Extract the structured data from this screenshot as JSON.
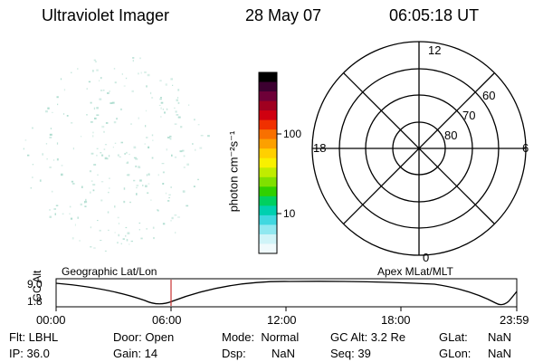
{
  "header": {
    "instrument": "Ultraviolet Imager",
    "date": "28 May 07",
    "time": "06:05:18 UT"
  },
  "colorbar": {
    "unit_label": "photon cm⁻²s⁻¹",
    "tick_100": "100",
    "tick_10": "10"
  },
  "polar_plot": {
    "mlt_top": "12",
    "mlt_left": "18",
    "mlt_right": "6",
    "mlt_bottom": "0",
    "lat_60": "60",
    "lat_70": "70",
    "lat_80": "80"
  },
  "timeline": {
    "left_title": "Geographic Lat/Lon",
    "right_title": "Apex MLat/MLT",
    "y_axis_label": "GC Alt",
    "y_top": "9.0",
    "y_bottom": "1.8",
    "x_ticks": [
      "00:00",
      "06:00",
      "12:00",
      "18:00",
      "23:59"
    ]
  },
  "status": {
    "flt": "Flt: LBHL",
    "ip": "IP: 36.0",
    "door": "Door: Open",
    "gain": "Gain: 14",
    "mode": "Mode:  Normal",
    "dsp_label": "Dsp:",
    "dsp_value": "NaN",
    "gc_alt": "GC Alt: 3.2 Re",
    "seq": "Seq: 39",
    "glat_label": "GLat:",
    "glat_value": "NaN",
    "glon_label": "GLon:",
    "glon_value": "NaN"
  },
  "colors": {
    "marker": "#c83232",
    "speckle": "#9fd6c6"
  }
}
